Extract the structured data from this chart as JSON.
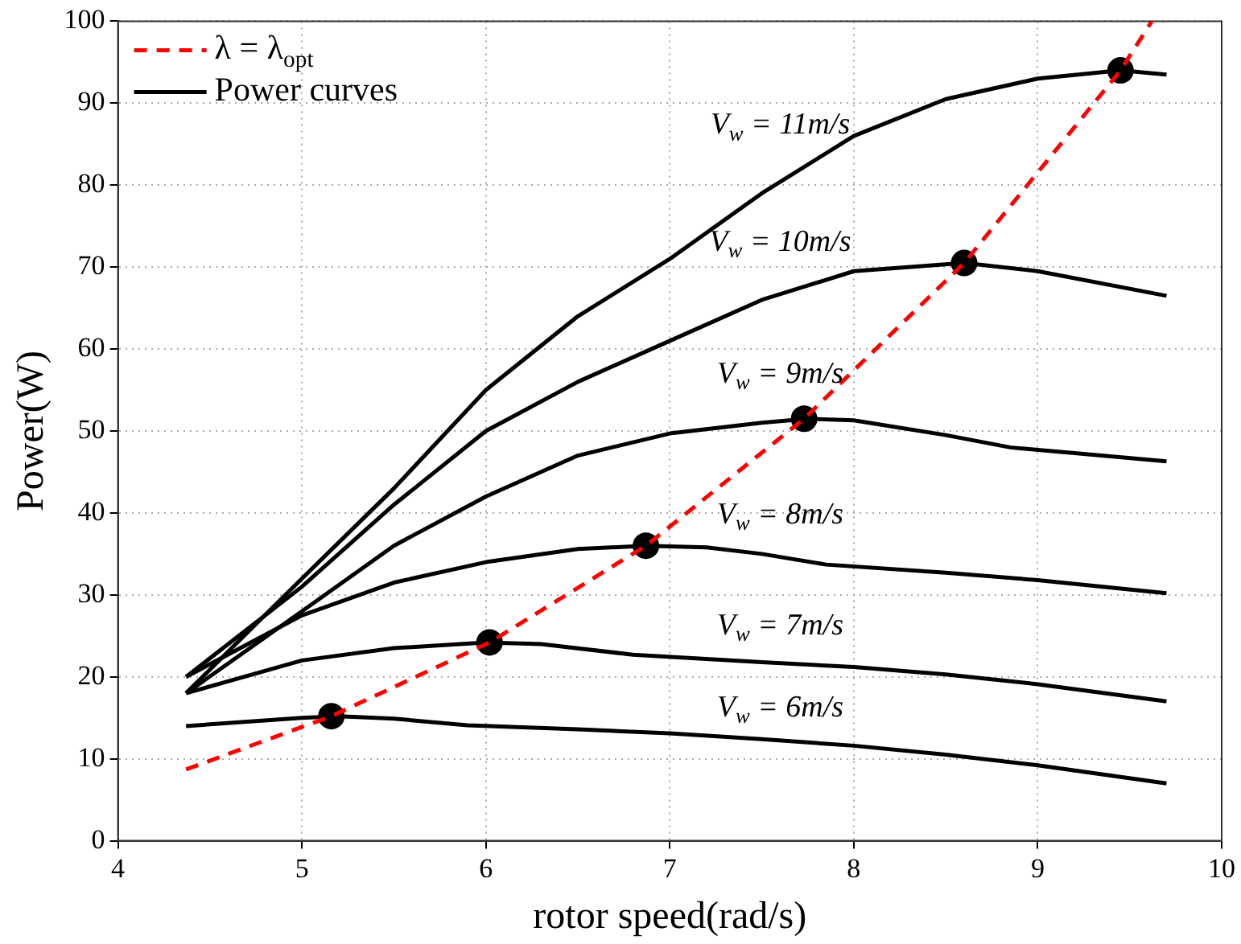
{
  "chart_data": {
    "type": "line",
    "xlabel": "rotor speed(rad/s)",
    "ylabel": "Power(W)",
    "xlim": [
      4,
      10
    ],
    "xticks": [
      4,
      5,
      6,
      7,
      8,
      9,
      10
    ],
    "ylim": [
      0,
      100
    ],
    "yticks": [
      0,
      10,
      20,
      30,
      40,
      50,
      60,
      70,
      80,
      90,
      100
    ],
    "grid": true,
    "legend": "top left",
    "series": [
      {
        "name": "λ = λ$_{opt}$",
        "color": "#ff0000",
        "line_style": "dashed",
        "x": [
          4.37,
          5.16,
          6.02,
          6.87,
          7.73,
          8.6,
          9.45,
          9.62
        ],
        "values": [
          8.7,
          15.2,
          24.2,
          36,
          51.5,
          70.5,
          94,
          100
        ]
      },
      {
        "name": "Power curves",
        "color": "#000000",
        "line_style": "solid",
        "x": [
          4.37,
          5,
          5.5,
          6,
          6.5,
          7,
          7.5,
          8,
          8.5,
          9,
          9.45,
          9.7
        ],
        "values": [
          18,
          32,
          43,
          55,
          64,
          71,
          79,
          86,
          90.5,
          93,
          94,
          93.5
        ]
      },
      {
        "color": "#000000",
        "line_style": "solid",
        "x": [
          4.37,
          5,
          5.5,
          6,
          6.5,
          7,
          7.5,
          8,
          8.6,
          9,
          9.7
        ],
        "values": [
          20,
          31,
          41,
          50,
          56,
          61,
          66,
          69.5,
          70.5,
          69.5,
          66.5
        ]
      },
      {
        "color": "#000000",
        "line_style": "solid",
        "x": [
          4.37,
          5,
          5.5,
          6,
          6.5,
          7,
          7.5,
          7.75,
          8,
          8.5,
          8.85,
          9.2,
          9.7
        ],
        "values": [
          18,
          28,
          36,
          42,
          47,
          49.7,
          51,
          51.5,
          51.3,
          49.5,
          48,
          47.3,
          46.3
        ]
      },
      {
        "color": "#000000",
        "line_style": "solid",
        "x": [
          4.37,
          5,
          5.5,
          6,
          6.5,
          6.87,
          7.2,
          7.5,
          7.85,
          8.5,
          9,
          9.7
        ],
        "values": [
          20,
          27.5,
          31.5,
          34,
          35.6,
          36,
          35.8,
          35,
          33.7,
          32.7,
          31.8,
          30.2
        ]
      },
      {
        "color": "#000000",
        "line_style": "solid",
        "x": [
          4.37,
          5,
          5.5,
          6,
          6.3,
          6.8,
          7.5,
          8,
          8.5,
          9,
          9.7
        ],
        "values": [
          18,
          22,
          23.5,
          24.2,
          24,
          22.7,
          21.8,
          21.2,
          20.3,
          19.1,
          17
        ]
      },
      {
        "color": "#000000",
        "line_style": "solid",
        "x": [
          4.37,
          5,
          5.2,
          5.5,
          5.9,
          6.5,
          7,
          7.5,
          8,
          8.5,
          9,
          9.7
        ],
        "values": [
          14,
          15,
          15.2,
          14.9,
          14.1,
          13.6,
          13.1,
          12.4,
          11.6,
          10.5,
          9.2,
          7
        ]
      },
      {
        "type": "scatter",
        "color": "#000000",
        "marker": "circle",
        "x": [
          5.16,
          6.02,
          6.87,
          7.73,
          8.6,
          9.45
        ],
        "values": [
          15.2,
          24.2,
          36,
          51.5,
          70.5,
          94
        ]
      }
    ],
    "annotations": [
      "V$_{w}$ = 11m/s",
      "V$_{w}$ = 10m/s",
      "V$_{w}$ = 9m/s",
      "V$_{w}$ = 8m/s",
      "V$_{w}$ = 7m/s",
      "V$_{w}$ = 6m/s"
    ]
  }
}
